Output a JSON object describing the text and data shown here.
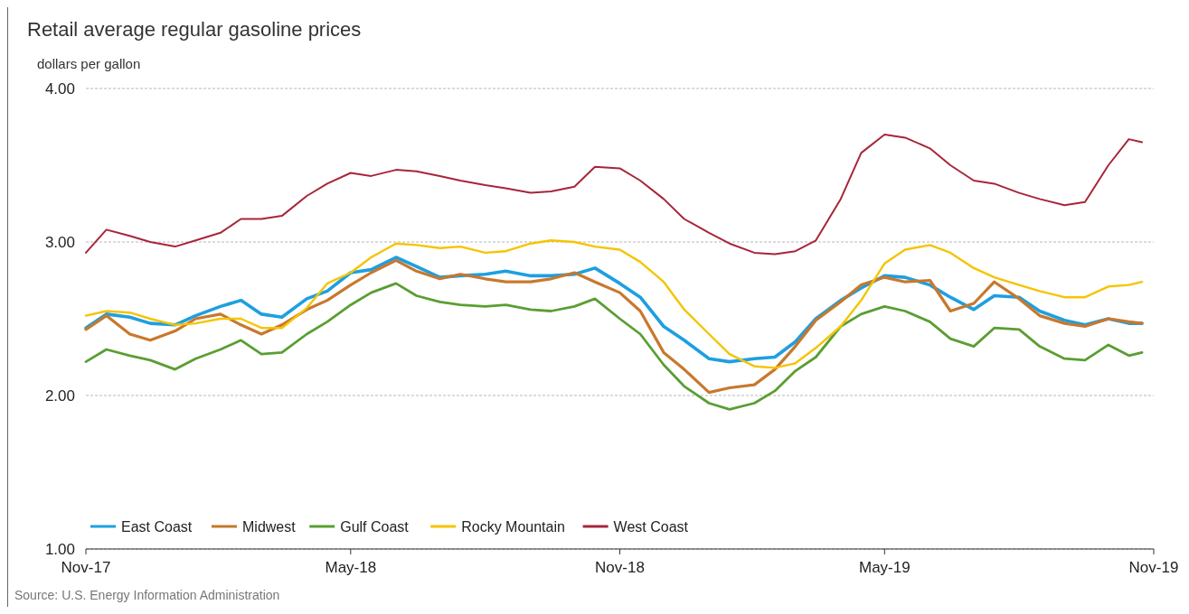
{
  "chart_data": {
    "type": "line",
    "title": "Retail average regular gasoline prices",
    "ylabel": "dollars per gallon",
    "annotations": [
      "Source: U.S. Energy Information Administration"
    ],
    "x": [
      "2017-11-01",
      "2017-11-15",
      "2017-12-01",
      "2017-12-15",
      "2018-01-01",
      "2018-01-15",
      "2018-02-01",
      "2018-02-15",
      "2018-03-01",
      "2018-03-15",
      "2018-04-01",
      "2018-04-15",
      "2018-05-01",
      "2018-05-15",
      "2018-06-01",
      "2018-06-15",
      "2018-07-01",
      "2018-07-15",
      "2018-08-01",
      "2018-08-15",
      "2018-09-01",
      "2018-09-15",
      "2018-10-01",
      "2018-10-15",
      "2018-11-01",
      "2018-11-15",
      "2018-12-01",
      "2018-12-15",
      "2019-01-01",
      "2019-01-15",
      "2019-02-01",
      "2019-02-15",
      "2019-03-01",
      "2019-03-15",
      "2019-04-01",
      "2019-04-15",
      "2019-05-01",
      "2019-05-15",
      "2019-06-01",
      "2019-06-15",
      "2019-07-01",
      "2019-07-15",
      "2019-08-01",
      "2019-08-15",
      "2019-09-01",
      "2019-09-15",
      "2019-10-01",
      "2019-10-15",
      "2019-10-24"
    ],
    "series": [
      {
        "name": "East Coast",
        "color": "#1e9fe0",
        "values": [
          2.44,
          2.53,
          2.51,
          2.47,
          2.46,
          2.52,
          2.58,
          2.62,
          2.53,
          2.51,
          2.63,
          2.68,
          2.8,
          2.82,
          2.9,
          2.84,
          2.77,
          2.78,
          2.79,
          2.81,
          2.78,
          2.78,
          2.79,
          2.83,
          2.73,
          2.64,
          2.45,
          2.36,
          2.24,
          2.22,
          2.24,
          2.25,
          2.35,
          2.5,
          2.62,
          2.7,
          2.78,
          2.77,
          2.72,
          2.64,
          2.56,
          2.65,
          2.64,
          2.55,
          2.49,
          2.46,
          2.5,
          2.47,
          2.47
        ]
      },
      {
        "name": "Midwest",
        "color": "#c8782d",
        "values": [
          2.43,
          2.52,
          2.4,
          2.36,
          2.42,
          2.5,
          2.53,
          2.46,
          2.4,
          2.46,
          2.56,
          2.62,
          2.72,
          2.8,
          2.88,
          2.81,
          2.76,
          2.79,
          2.76,
          2.74,
          2.74,
          2.76,
          2.8,
          2.74,
          2.67,
          2.55,
          2.28,
          2.17,
          2.02,
          2.05,
          2.07,
          2.17,
          2.32,
          2.49,
          2.61,
          2.72,
          2.77,
          2.74,
          2.75,
          2.55,
          2.6,
          2.74,
          2.63,
          2.52,
          2.47,
          2.45,
          2.5,
          2.48,
          2.47
        ]
      },
      {
        "name": "Gulf Coast",
        "color": "#5a9e32",
        "values": [
          2.22,
          2.3,
          2.26,
          2.23,
          2.17,
          2.24,
          2.3,
          2.36,
          2.27,
          2.28,
          2.4,
          2.48,
          2.59,
          2.67,
          2.73,
          2.65,
          2.61,
          2.59,
          2.58,
          2.59,
          2.56,
          2.55,
          2.58,
          2.63,
          2.5,
          2.4,
          2.2,
          2.06,
          1.95,
          1.91,
          1.95,
          2.03,
          2.16,
          2.25,
          2.45,
          2.53,
          2.58,
          2.55,
          2.48,
          2.37,
          2.32,
          2.44,
          2.43,
          2.32,
          2.24,
          2.23,
          2.33,
          2.26,
          2.28
        ]
      },
      {
        "name": "Rocky Mountain",
        "color": "#f5c400",
        "values": [
          2.52,
          2.55,
          2.54,
          2.5,
          2.46,
          2.47,
          2.5,
          2.5,
          2.44,
          2.44,
          2.57,
          2.73,
          2.8,
          2.9,
          2.99,
          2.98,
          2.96,
          2.97,
          2.93,
          2.94,
          2.99,
          3.01,
          3.0,
          2.97,
          2.95,
          2.87,
          2.74,
          2.56,
          2.4,
          2.27,
          2.19,
          2.18,
          2.21,
          2.31,
          2.45,
          2.62,
          2.86,
          2.95,
          2.98,
          2.93,
          2.83,
          2.77,
          2.72,
          2.68,
          2.64,
          2.64,
          2.71,
          2.72,
          2.74
        ]
      },
      {
        "name": "West Coast",
        "color": "#a8253a",
        "values": [
          2.93,
          3.08,
          3.04,
          3.0,
          2.97,
          3.01,
          3.06,
          3.15,
          3.15,
          3.17,
          3.3,
          3.38,
          3.45,
          3.43,
          3.47,
          3.46,
          3.43,
          3.4,
          3.37,
          3.35,
          3.32,
          3.33,
          3.36,
          3.49,
          3.48,
          3.4,
          3.28,
          3.15,
          3.06,
          2.99,
          2.93,
          2.92,
          2.94,
          3.01,
          3.28,
          3.58,
          3.7,
          3.68,
          3.61,
          3.5,
          3.4,
          3.38,
          3.32,
          3.28,
          3.24,
          3.26,
          3.5,
          3.67,
          3.65
        ]
      }
    ],
    "xlim": [
      "2017-11-01",
      "2019-11-01"
    ],
    "xticks": [
      {
        "value": "2017-11-01",
        "label": "Nov-17"
      },
      {
        "value": "2018-05-01",
        "label": "May-18"
      },
      {
        "value": "2018-11-01",
        "label": "Nov-18"
      },
      {
        "value": "2019-05-01",
        "label": "May-19"
      },
      {
        "value": "2019-11-01",
        "label": "Nov-19"
      }
    ],
    "ylim": [
      1,
      4
    ],
    "yticks": [
      {
        "value": 1,
        "label": "1.00"
      },
      {
        "value": 2,
        "label": "2.00"
      },
      {
        "value": 3,
        "label": "3.00"
      },
      {
        "value": 4,
        "label": "4.00"
      }
    ],
    "grid": "y",
    "legend": "bottom left",
    "line_style": "solid"
  }
}
